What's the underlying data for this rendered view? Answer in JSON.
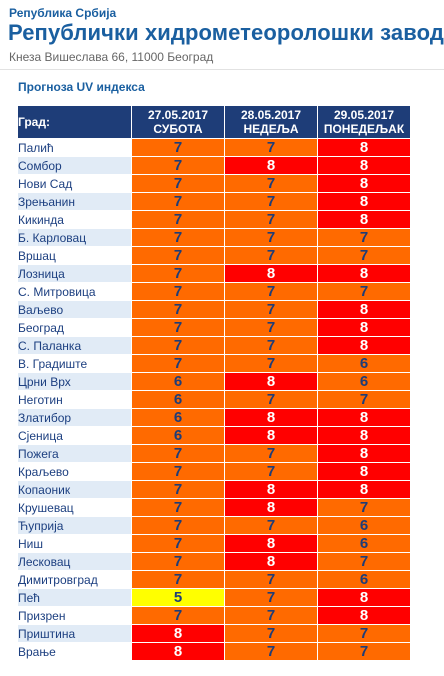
{
  "header": {
    "org_subtitle": "Република Србија",
    "org_title": "Републички хидрометеоролошки завод",
    "address": "Кнеза Вишеслава 66, 11000 Београд"
  },
  "section_title": "Прогноза UV индекса",
  "table": {
    "city_header": "Град:",
    "days": [
      {
        "date": "27.05.2017",
        "weekday": "СУБОТА"
      },
      {
        "date": "28.05.2017",
        "weekday": "НЕДЕЉА"
      },
      {
        "date": "29.05.2017",
        "weekday": "ПОНЕДЕЉАК"
      }
    ],
    "rows": [
      {
        "city": "Палић",
        "values": [
          "7",
          "7",
          "8"
        ]
      },
      {
        "city": "Сомбор",
        "values": [
          "7",
          "8",
          "8"
        ]
      },
      {
        "city": "Нови Сад",
        "values": [
          "7",
          "7",
          "8"
        ]
      },
      {
        "city": "Зрењанин",
        "values": [
          "7",
          "7",
          "8"
        ]
      },
      {
        "city": "Кикинда",
        "values": [
          "7",
          "7",
          "8"
        ]
      },
      {
        "city": "Б. Карловац",
        "values": [
          "7",
          "7",
          "7"
        ]
      },
      {
        "city": "Вршац",
        "values": [
          "7",
          "7",
          "7"
        ]
      },
      {
        "city": "Лозница",
        "values": [
          "7",
          "8",
          "8"
        ]
      },
      {
        "city": "С. Митровица",
        "values": [
          "7",
          "7",
          "7"
        ]
      },
      {
        "city": "Ваљево",
        "values": [
          "7",
          "7",
          "8"
        ]
      },
      {
        "city": "Београд",
        "values": [
          "7",
          "7",
          "8"
        ]
      },
      {
        "city": "С. Паланка",
        "values": [
          "7",
          "7",
          "8"
        ]
      },
      {
        "city": "В. Градиште",
        "values": [
          "7",
          "7",
          "6"
        ]
      },
      {
        "city": "Црни Врх",
        "values": [
          "6",
          "8",
          "6"
        ]
      },
      {
        "city": "Неготин",
        "values": [
          "6",
          "7",
          "7"
        ]
      },
      {
        "city": "Златибор",
        "values": [
          "6",
          "8",
          "8"
        ]
      },
      {
        "city": "Сјеница",
        "values": [
          "6",
          "8",
          "8"
        ]
      },
      {
        "city": "Пожега",
        "values": [
          "7",
          "7",
          "8"
        ]
      },
      {
        "city": "Краљево",
        "values": [
          "7",
          "7",
          "8"
        ]
      },
      {
        "city": "Копаоник",
        "values": [
          "7",
          "8",
          "8"
        ]
      },
      {
        "city": "Крушевац",
        "values": [
          "7",
          "8",
          "7"
        ]
      },
      {
        "city": "Ћуприја",
        "values": [
          "7",
          "7",
          "6"
        ]
      },
      {
        "city": "Ниш",
        "values": [
          "7",
          "8",
          "6"
        ]
      },
      {
        "city": "Лесковац",
        "values": [
          "7",
          "8",
          "7"
        ]
      },
      {
        "city": "Димитровград",
        "values": [
          "7",
          "7",
          "6"
        ]
      },
      {
        "city": "Пећ",
        "values": [
          "5",
          "7",
          "8"
        ]
      },
      {
        "city": "Призрен",
        "values": [
          "7",
          "7",
          "8"
        ]
      },
      {
        "city": "Приштина",
        "values": [
          "8",
          "7",
          "7"
        ]
      },
      {
        "city": "Врање",
        "values": [
          "8",
          "7",
          "7"
        ]
      }
    ]
  },
  "colors": {
    "uv5": "#ffff00",
    "uv6": "#ff6a00",
    "uv7": "#ff6a00",
    "uv8": "#ff0000",
    "header_bg": "#1e3d78",
    "brand_text": "#1a5fa0"
  }
}
